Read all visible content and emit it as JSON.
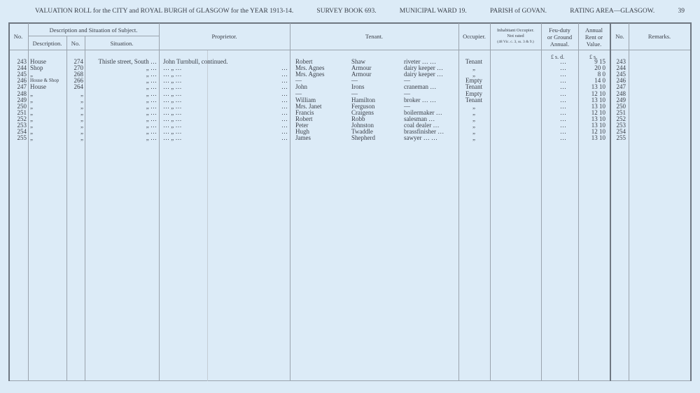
{
  "header": {
    "title": "VALUATION ROLL for the CITY and ROYAL BURGH of GLASGOW for the YEAR 1913-14.",
    "survey": "SURVEY BOOK 693.",
    "ward": "MUNICIPAL WARD 19.",
    "parish": "PARISH of GOVAN.",
    "rating": "RATING AREA—GLASGOW.",
    "page": "39"
  },
  "columns": {
    "no": "No.",
    "desc_group": "Description and Situation of Subject.",
    "description": "Description.",
    "num": "No.",
    "situation": "Situation.",
    "proprietor": "Proprietor.",
    "tenant": "Tenant.",
    "occupier": "Occupier.",
    "inhabitant": [
      "Inhabitant Occupier.",
      "Not rated",
      "(48 Vic. c. 3, ss. 3 & 9.)"
    ],
    "feu": [
      "Feu-duty",
      "or Ground",
      "Annual."
    ],
    "rent": [
      "Annual",
      "Rent or",
      "Value."
    ],
    "no2": "No.",
    "remarks": "Remarks."
  },
  "units": {
    "feu": "£  s.  d.",
    "rent": "£  s."
  },
  "rows": [
    {
      "no": "243",
      "desc": "House",
      "num": "274",
      "sit": "Thistle street, South  …",
      "prop": "John Turnbull, continued.",
      "first": "Robert",
      "last": "Shaw",
      "occ": "riveter  …   …",
      "occupier": "Tenant",
      "feu": "…",
      "rent": "9 15",
      "no2": "243"
    },
    {
      "no": "244",
      "desc": "Shop",
      "num": "270",
      "sit": "„    …",
      "prop": "…         „        …",
      "first": "Mrs. Agnes",
      "last": "Armour",
      "occ": "dairy keeper   …",
      "occupier": "„",
      "feu": "…",
      "rent": "20  0",
      "no2": "244"
    },
    {
      "no": "245",
      "desc": "„",
      "num": "268",
      "sit": "„    …",
      "prop": "…         „        …",
      "first": "Mrs. Agnes",
      "last": "Armour",
      "occ": "dairy keeper   …",
      "occupier": "„",
      "feu": "…",
      "rent": "8  0",
      "no2": "245"
    },
    {
      "no": "246",
      "desc": "House & Shop",
      "num": "266",
      "sit": "„    …",
      "prop": "…         „        …",
      "first": "—",
      "last": "—",
      "occ": "—",
      "occupier": "Empty",
      "feu": "…",
      "rent": "14  0",
      "no2": "246"
    },
    {
      "no": "247",
      "desc": "House",
      "num": "264",
      "sit": "„    …",
      "prop": "…         „        …",
      "first": "John",
      "last": "Irons",
      "occ": "craneman   …",
      "occupier": "Tenant",
      "feu": "…",
      "rent": "13 10",
      "no2": "247"
    },
    {
      "no": "248",
      "desc": "„",
      "num": "„",
      "sit": "„    …",
      "prop": "…         „        …",
      "first": "—",
      "last": "—",
      "occ": "—",
      "occupier": "Empty",
      "feu": "…",
      "rent": "12 10",
      "no2": "248"
    },
    {
      "no": "249",
      "desc": "„",
      "num": "„",
      "sit": "„    …",
      "prop": "…         „        …",
      "first": "William",
      "last": "Hamilton",
      "occ": "broker  …   …",
      "occupier": "Tenant",
      "feu": "…",
      "rent": "13 10",
      "no2": "249"
    },
    {
      "no": "250",
      "desc": "„",
      "num": "„",
      "sit": "„    …",
      "prop": "…         „        …",
      "first": "Mrs. Janet",
      "last": "Ferguson",
      "occ": "—",
      "occupier": "„",
      "feu": "…",
      "rent": "13 10",
      "no2": "250"
    },
    {
      "no": "251",
      "desc": "„",
      "num": "„",
      "sit": "„    …",
      "prop": "…         „        …",
      "first": "Francis",
      "last": "Craigens",
      "occ": "boilermaker   …",
      "occupier": "„",
      "feu": "…",
      "rent": "12 10",
      "no2": "251"
    },
    {
      "no": "252",
      "desc": "„",
      "num": "„",
      "sit": "„    …",
      "prop": "…         „        …",
      "first": "Robert",
      "last": "Robb",
      "occ": "salesman   …",
      "occupier": "„",
      "feu": "…",
      "rent": "13 10",
      "no2": "252"
    },
    {
      "no": "253",
      "desc": "„",
      "num": "„",
      "sit": "„    …",
      "prop": "…         „        …",
      "first": "Peter",
      "last": "Johnston",
      "occ": "coal dealer   …",
      "occupier": "„",
      "feu": "…",
      "rent": "13 10",
      "no2": "253"
    },
    {
      "no": "254",
      "desc": "„",
      "num": "„",
      "sit": "„    …",
      "prop": "…         „        …",
      "first": "Hugh",
      "last": "Twaddle",
      "occ": "brassfinisher   …",
      "occupier": "„",
      "feu": "…",
      "rent": "12 10",
      "no2": "254"
    },
    {
      "no": "255",
      "desc": "„",
      "num": "„",
      "sit": "„    …",
      "prop": "…         „        …",
      "first": "James",
      "last": "Shepherd",
      "occ": "sawyer  …   …",
      "occupier": "„",
      "feu": "…",
      "rent": "13 10",
      "no2": "255"
    }
  ]
}
